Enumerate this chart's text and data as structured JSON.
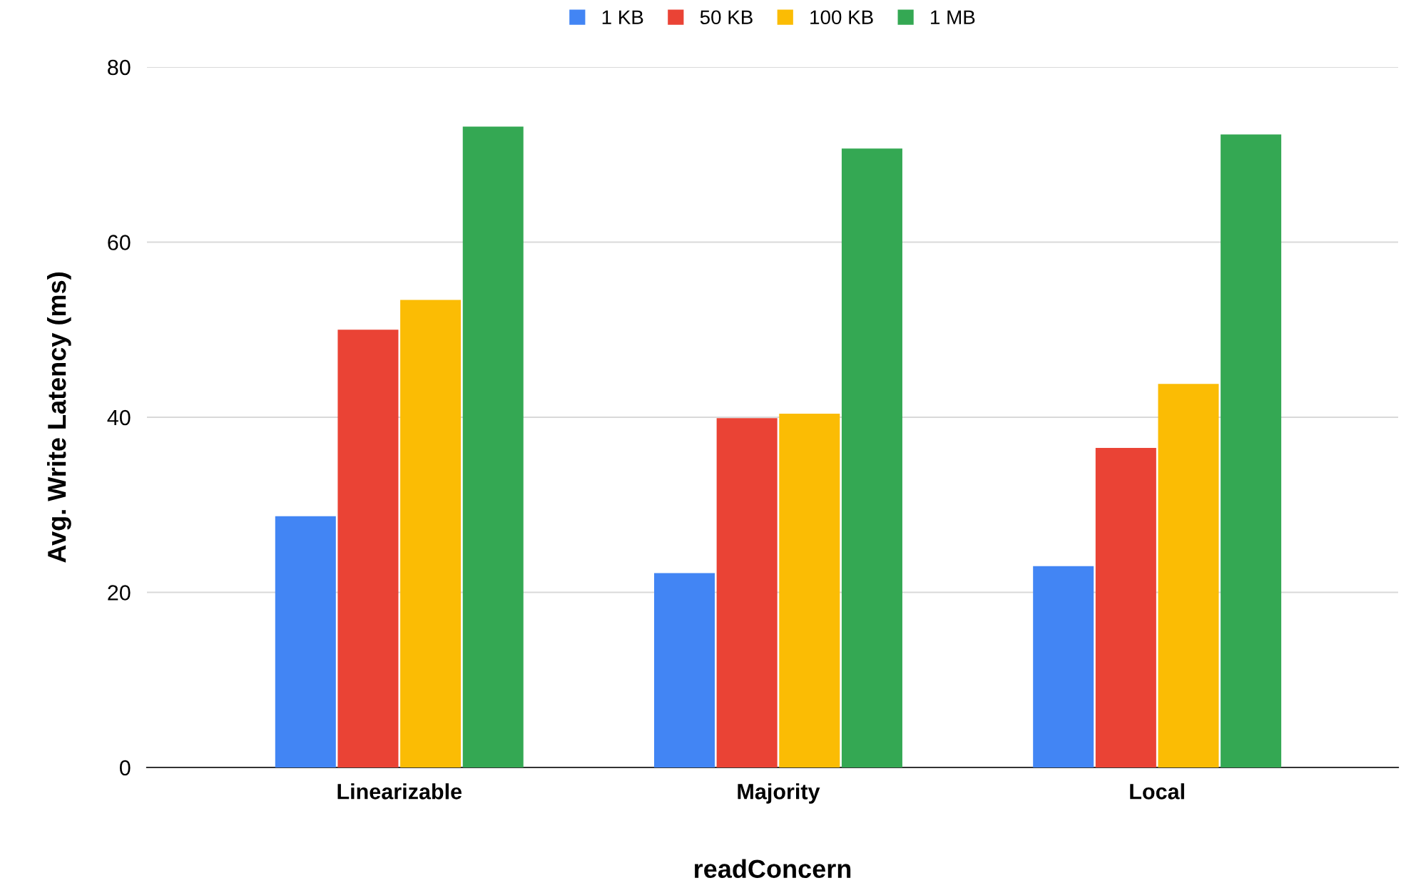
{
  "chart_data": {
    "type": "bar",
    "xlabel": "readConcern",
    "ylabel": "Avg. Write Latency (ms)",
    "categories": [
      "Linearizable",
      "Majority",
      "Local"
    ],
    "series": [
      {
        "name": "1 KB",
        "color": "#4285f4",
        "values": [
          28.7,
          22.2,
          23.0
        ]
      },
      {
        "name": "50 KB",
        "color": "#ea4335",
        "values": [
          50.0,
          39.9,
          36.5
        ]
      },
      {
        "name": "100 KB",
        "color": "#fbbc04",
        "values": [
          53.4,
          40.4,
          43.8
        ]
      },
      {
        "name": "1 MB",
        "color": "#34a853",
        "values": [
          73.2,
          70.7,
          72.3
        ]
      }
    ],
    "ylim": [
      0,
      80
    ],
    "yticks": [
      0,
      20,
      40,
      60,
      80
    ],
    "grid": "y",
    "legend": "top"
  }
}
